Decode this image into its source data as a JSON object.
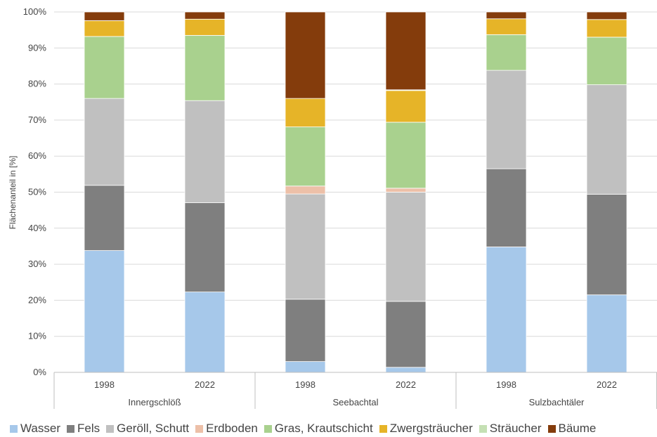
{
  "chart_data": {
    "type": "stacked-bar-100",
    "ylabel": "Flächenanteil in [%]",
    "y_ticks": [
      "0%",
      "10%",
      "20%",
      "30%",
      "40%",
      "50%",
      "60%",
      "70%",
      "80%",
      "90%",
      "100%"
    ],
    "ylim": [
      0,
      100
    ],
    "grid": true,
    "legend_position": "bottom",
    "groups": [
      {
        "label": "Innergschlöß",
        "years": [
          "1998",
          "2022"
        ]
      },
      {
        "label": "Seebachtal",
        "years": [
          "1998",
          "2022"
        ]
      },
      {
        "label": "Sulzbachtäler",
        "years": [
          "1998",
          "2022"
        ]
      }
    ],
    "series": [
      {
        "name": "Wasser",
        "color": "#a6c8ea",
        "values": [
          33.8,
          22.3,
          3.0,
          1.4,
          34.8,
          21.5
        ]
      },
      {
        "name": "Fels",
        "color": "#7f7f7f",
        "values": [
          18.1,
          24.8,
          17.3,
          18.3,
          21.7,
          27.9
        ]
      },
      {
        "name": "Geröll, Schutt",
        "color": "#c0c0c0",
        "values": [
          24.1,
          28.3,
          29.2,
          30.3,
          27.3,
          30.4
        ]
      },
      {
        "name": "Erdboden",
        "color": "#edc0a8",
        "values": [
          0.0,
          0.0,
          2.2,
          1.1,
          0.0,
          0.0
        ]
      },
      {
        "name": "Gras, Krautschicht",
        "color": "#a9d18e",
        "values": [
          17.2,
          18.1,
          16.4,
          18.3,
          9.9,
          13.2
        ]
      },
      {
        "name": "Zwergsträucher",
        "color": "#e6b428",
        "values": [
          4.4,
          4.5,
          7.9,
          8.8,
          4.4,
          4.9
        ]
      },
      {
        "name": "Sträucher",
        "color": "#c5e0b4",
        "values": [
          0.0,
          0.0,
          0.0,
          0.2,
          0.0,
          0.0
        ]
      },
      {
        "name": "Bäume",
        "color": "#843c0c",
        "values": [
          2.4,
          2.0,
          24.0,
          21.6,
          1.9,
          2.1
        ]
      }
    ]
  }
}
